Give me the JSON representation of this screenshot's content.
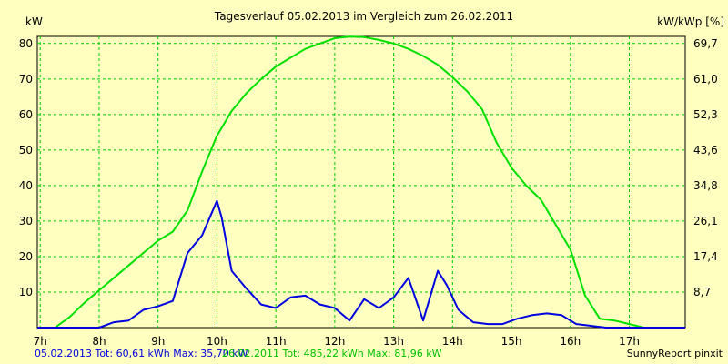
{
  "chart_data": {
    "type": "line",
    "title": "Tagesverlauf 05.02.2013 im Vergleich zum 26.02.2011",
    "ylabel_left": "kW",
    "ylabel_right": "kW/kWp [%]",
    "ylim": [
      0,
      82
    ],
    "xlim": [
      6.95,
      17.95
    ],
    "grid": true,
    "x_ticks": [
      {
        "v": 7,
        "label": "7h"
      },
      {
        "v": 8,
        "label": "8h"
      },
      {
        "v": 9,
        "label": "9h"
      },
      {
        "v": 10,
        "label": "10h"
      },
      {
        "v": 11,
        "label": "11h"
      },
      {
        "v": 12,
        "label": "12h"
      },
      {
        "v": 13,
        "label": "13h"
      },
      {
        "v": 14,
        "label": "14h"
      },
      {
        "v": 15,
        "label": "15h"
      },
      {
        "v": 16,
        "label": "16h"
      },
      {
        "v": 17,
        "label": "17h"
      }
    ],
    "y_ticks_left": [
      {
        "v": 10,
        "label": "10"
      },
      {
        "v": 20,
        "label": "20"
      },
      {
        "v": 30,
        "label": "30"
      },
      {
        "v": 40,
        "label": "40"
      },
      {
        "v": 50,
        "label": "50"
      },
      {
        "v": 60,
        "label": "60"
      },
      {
        "v": 70,
        "label": "70"
      },
      {
        "v": 80,
        "label": "80"
      }
    ],
    "y_ticks_right": [
      {
        "v": 10,
        "label": "8,7"
      },
      {
        "v": 20,
        "label": "17,4"
      },
      {
        "v": 30,
        "label": "26,1"
      },
      {
        "v": 40,
        "label": "34,8"
      },
      {
        "v": 50,
        "label": "43,6"
      },
      {
        "v": 60,
        "label": "52,3"
      },
      {
        "v": 70,
        "label": "61,0"
      },
      {
        "v": 80,
        "label": "69,7"
      }
    ],
    "series": [
      {
        "name": "26.02.2011",
        "color": "#00e000",
        "x": [
          6.95,
          7.25,
          7.5,
          7.75,
          8.0,
          8.25,
          8.5,
          8.75,
          9.0,
          9.25,
          9.5,
          9.75,
          10.0,
          10.25,
          10.5,
          10.75,
          11.0,
          11.25,
          11.5,
          11.75,
          12.0,
          12.25,
          12.5,
          12.75,
          13.0,
          13.25,
          13.5,
          13.75,
          14.0,
          14.25,
          14.5,
          14.75,
          15.0,
          15.25,
          15.5,
          15.75,
          16.0,
          16.25,
          16.5,
          16.75,
          17.0,
          17.25,
          17.5,
          17.75,
          17.95
        ],
        "values": [
          0,
          0,
          3,
          7,
          10.5,
          14,
          17.5,
          21,
          24.5,
          27,
          33,
          44,
          54,
          61,
          66,
          70,
          73.5,
          76,
          78.5,
          80,
          81.5,
          81.96,
          81.8,
          81,
          80,
          78.5,
          76.5,
          74,
          70.5,
          66.5,
          61.5,
          52,
          45,
          40,
          36,
          29,
          22,
          9,
          2.5,
          2,
          1,
          0,
          0,
          0,
          0
        ]
      },
      {
        "name": "05.02.2013",
        "color": "#0000e0",
        "x": [
          6.95,
          7.5,
          8.0,
          8.25,
          8.5,
          8.75,
          9.0,
          9.25,
          9.5,
          9.75,
          10.0,
          10.08,
          10.25,
          10.5,
          10.75,
          11.0,
          11.25,
          11.5,
          11.75,
          12.0,
          12.25,
          12.5,
          12.75,
          13.0,
          13.25,
          13.5,
          13.75,
          13.9,
          14.1,
          14.35,
          14.6,
          14.85,
          15.1,
          15.35,
          15.6,
          15.85,
          16.1,
          16.35,
          16.6,
          16.85,
          17.1,
          17.95
        ],
        "values": [
          0,
          0,
          0,
          1.5,
          2,
          5,
          6,
          7.5,
          21,
          26,
          35.7,
          31,
          16,
          11,
          6.5,
          5.5,
          8.5,
          9,
          6.5,
          5.5,
          2,
          8,
          5.5,
          8.5,
          14,
          2,
          16,
          12,
          5,
          1.5,
          1,
          1,
          2.5,
          3.5,
          4,
          3.5,
          1,
          0.5,
          0,
          0,
          0,
          0
        ]
      }
    ],
    "legend": [
      {
        "text": "05.02.2013 Tot: 60,61 kWh Max: 35,70 kW",
        "color": "#0000e0"
      },
      {
        "text": "26.02.2011 Tot: 485,22 kWh Max: 81,96 kW",
        "color": "#00e000"
      }
    ],
    "credit": "SunnyReport pinxit"
  }
}
